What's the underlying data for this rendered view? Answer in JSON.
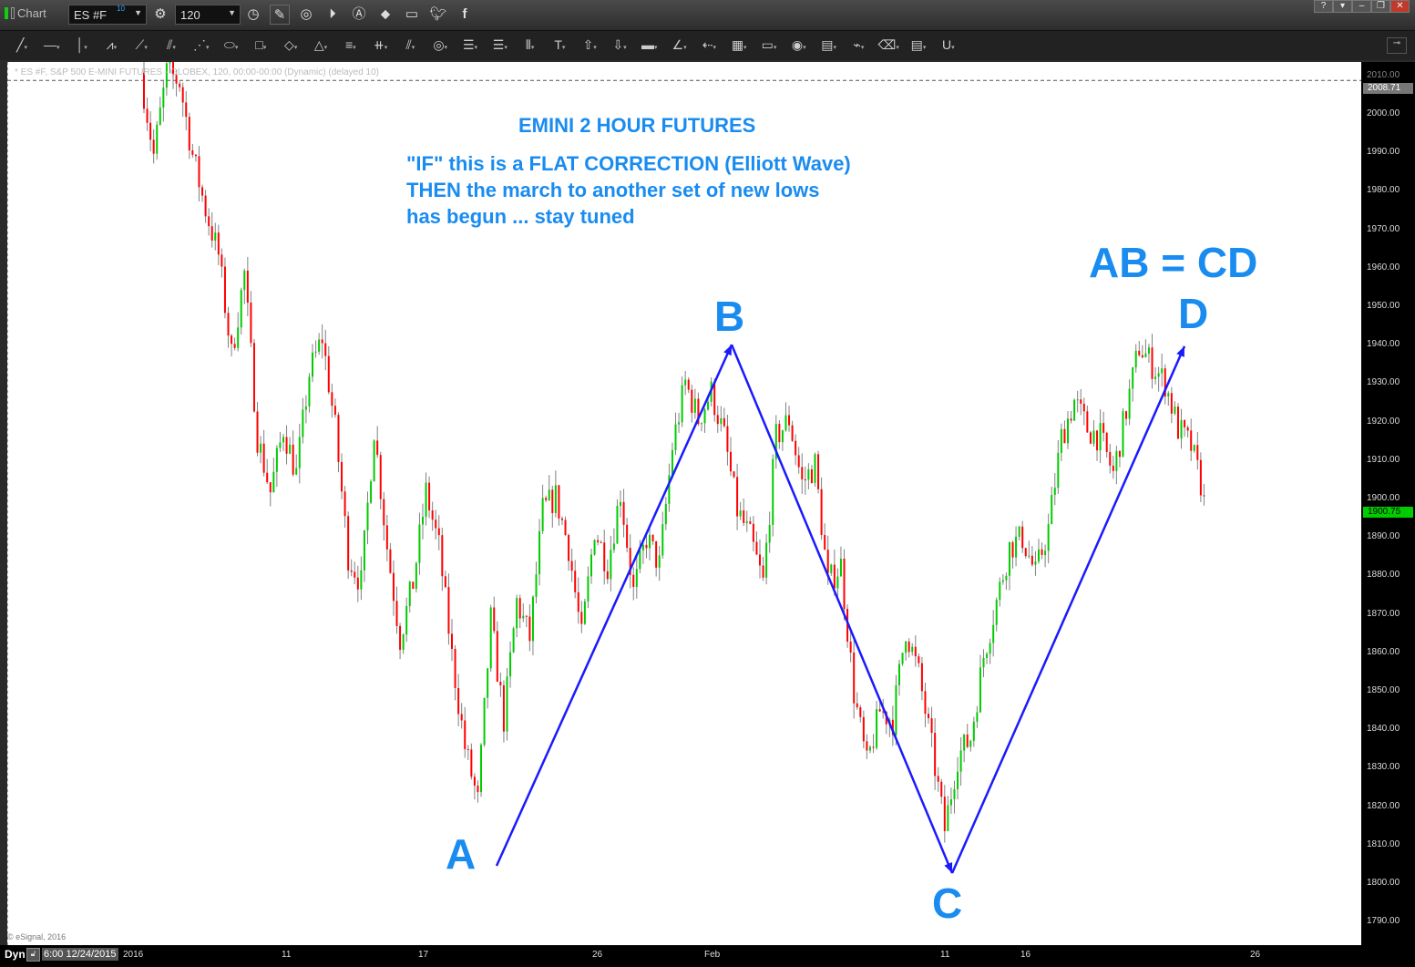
{
  "window": {
    "title": "Chart",
    "symbol": "ES #F",
    "symbol_badge": "10",
    "interval": "120",
    "buttons": [
      "help",
      "restore-menu",
      "minimize",
      "maximize",
      "close"
    ]
  },
  "toolbar_icons": [
    "settings-icon",
    "clock-icon",
    "pencil-icon",
    "study-icon",
    "play-icon",
    "alert-icon",
    "link-icon",
    "chat-icon",
    "twitter-icon",
    "facebook-icon"
  ],
  "draw_tools": [
    "line",
    "horizontal-line",
    "vertical-line",
    "polyline",
    "fan",
    "pitchfork",
    "gann-fan",
    "ellipse",
    "rectangle",
    "diamond",
    "triangle",
    "parallel-lines",
    "cycle-lines",
    "channel",
    "circles",
    "fib-retracement",
    "fib-extension",
    "time-zones",
    "text",
    "arrow-up",
    "arrow-down",
    "box",
    "angle",
    "back-arrow",
    "grid",
    "mob",
    "ellipse-tool",
    "pti",
    "zigzag",
    "eraser",
    "comment",
    "magnet"
  ],
  "chart": {
    "info": "* ES #F, S&P 500 E-MINI FUTURES - GLOBEX, 120, 00:00-00:00 (Dynamic) (delayed 10)",
    "copyright": "© eSignal, 2016",
    "annotations": {
      "title": "EMINI 2 HOUR FUTURES",
      "line1": "\"IF\" this is a FLAT CORRECTION (Elliott Wave)",
      "line2": "THEN the march to another set of new lows",
      "line3": "has begun ... stay tuned",
      "pattern": "AB = CD",
      "A": "A",
      "B": "B",
      "C": "C",
      "D": "D"
    },
    "colors": {
      "up": "#00cc00",
      "down": "#ff0000",
      "wick": "#808080",
      "annotation": "#1a8cf0",
      "pattern_line": "#1a1aff"
    }
  },
  "bottom": {
    "mode": "Dyn",
    "cursor_time": "6:00 12/24/2015"
  },
  "chart_data": {
    "type": "candlestick",
    "ylim": [
      1785,
      2015
    ],
    "yticks": [
      "2010.00",
      "2000.00",
      "1990.00",
      "1980.00",
      "1970.00",
      "1960.00",
      "1950.00",
      "1940.00",
      "1930.00",
      "1920.00",
      "1910.00",
      "1900.00",
      "1890.00",
      "1880.00",
      "1870.00",
      "1860.00",
      "1850.00",
      "1840.00",
      "1830.00",
      "1820.00",
      "1810.00",
      "1800.00",
      "1790.00"
    ],
    "xticks": [
      "2016",
      "11",
      "17",
      "26",
      "Feb",
      "11",
      "16",
      "26"
    ],
    "price_markers": {
      "high_line": "2008.71",
      "last": "1900.75"
    },
    "approx_close_path": [
      2010.7,
      1989.3,
      2010.7,
      2008.3,
      1989.3,
      1975.1,
      1963.3,
      1937.2,
      1958.5,
      1915.9,
      1901.7,
      1918.2,
      1906.4,
      1932.5,
      1941.9,
      1918.2,
      1885.1,
      1878.0,
      1918.2,
      1887.4,
      1863.7,
      1878.0,
      1901.7,
      1887.4,
      1859.0,
      1835.3,
      1821.1,
      1868.5,
      1842.4,
      1873.2,
      1863.7,
      1896.9,
      1900.5,
      1887.4,
      1863.7,
      1892.2,
      1882.7,
      1901.7,
      1875.6,
      1889.8,
      1882.7,
      1913.5,
      1930.1,
      1920.6,
      1927.7,
      1915.9,
      1896.9,
      1889.8,
      1878.0,
      1915.9,
      1920.6,
      1904.0,
      1908.8,
      1878.0,
      1882.7,
      1849.5,
      1830.6,
      1844.8,
      1842.4,
      1866.1,
      1854.3,
      1835.3,
      1814.0,
      1832.9,
      1837.7,
      1859.0,
      1873.2,
      1887.4,
      1889.8,
      1880.3,
      1892.2,
      1915.9,
      1925.4,
      1918.2,
      1915.9,
      1906.4,
      1923.0,
      1939.6,
      1934.8,
      1930.1,
      1918.2,
      1913.5,
      1900.75
    ],
    "abcd": {
      "A": 1804.5,
      "B": 1940.0,
      "C": 1802.6,
      "D": 1939.6
    }
  }
}
